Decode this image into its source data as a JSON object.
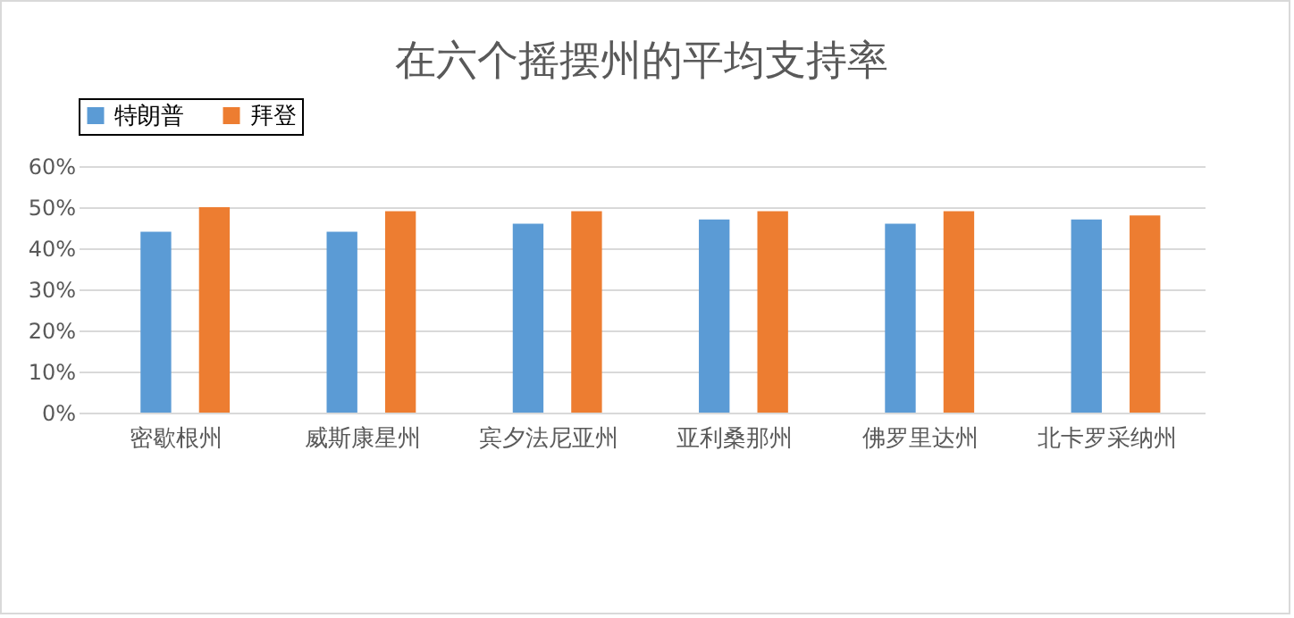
{
  "chart_data": {
    "type": "bar",
    "title": "在六个摇摆州的平均支持率",
    "categories": [
      "密歇根州",
      "威斯康星州",
      "宾夕法尼亚州",
      "亚利桑那州",
      "佛罗里达州",
      "北卡罗采纳州"
    ],
    "series": [
      {
        "name": "特朗普",
        "color": "#5b9bd5",
        "values": [
          44,
          44,
          46,
          47,
          46,
          47
        ]
      },
      {
        "name": "拜登",
        "color": "#ed7d31",
        "values": [
          50,
          49,
          49,
          49,
          49,
          48
        ]
      }
    ],
    "ylim": [
      0,
      60
    ],
    "yticks": [
      {
        "value": 0,
        "label": "0%"
      },
      {
        "value": 10,
        "label": "10%"
      },
      {
        "value": 20,
        "label": "20%"
      },
      {
        "value": 30,
        "label": "30%"
      },
      {
        "value": 40,
        "label": "40%"
      },
      {
        "value": 50,
        "label": "50%"
      },
      {
        "value": 60,
        "label": "60%"
      }
    ],
    "grid": "y",
    "legend": "top"
  }
}
